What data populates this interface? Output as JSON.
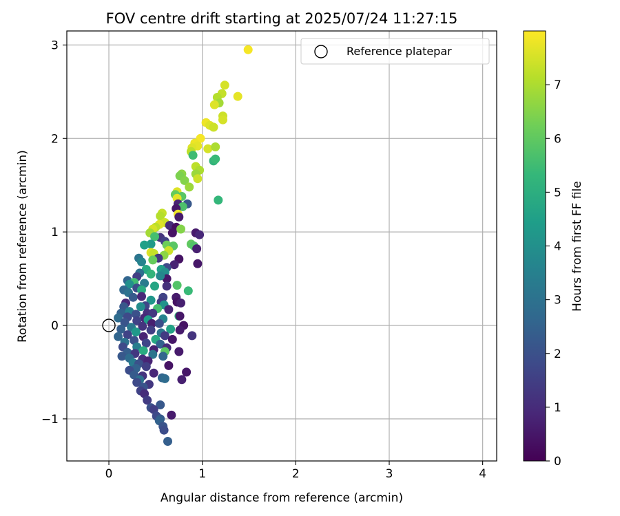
{
  "chart_data": {
    "type": "scatter",
    "title": "FOV centre drift starting at 2025/07/24 11:27:15",
    "xlabel": "Angular distance from reference (arcmin)",
    "ylabel": "Rotation from reference (arcmin)",
    "xlim": [
      -0.45,
      4.15
    ],
    "ylim": [
      -1.45,
      3.15
    ],
    "xticks": [
      0,
      1,
      2,
      3,
      4
    ],
    "xtick_labels": [
      "0",
      "1",
      "2",
      "3",
      "4"
    ],
    "yticks": [
      -1,
      0,
      1,
      2,
      3
    ],
    "ytick_labels": [
      "−1",
      "0",
      "1",
      "2",
      "3"
    ],
    "grid": true,
    "legend": {
      "placement": "top-right",
      "entries": [
        "Reference platepar"
      ]
    },
    "reference_point": {
      "x": 0,
      "y": 0
    },
    "colorbar": {
      "label": "Hours from first FF file",
      "range": [
        0,
        8
      ],
      "ticks": [
        0,
        1,
        2,
        3,
        4,
        5,
        6,
        7
      ],
      "tick_labels": [
        "0",
        "1",
        "2",
        "3",
        "4",
        "5",
        "6",
        "7"
      ],
      "colormap": [
        "#440154",
        "#482878",
        "#3e4989",
        "#31688e",
        "#26828e",
        "#1f9e89",
        "#35b779",
        "#6ece58",
        "#b5de2b",
        "#fde725"
      ]
    },
    "points": [
      {
        "x": 1.49,
        "y": 2.95,
        "t": 7.9
      },
      {
        "x": 1.38,
        "y": 2.45,
        "t": 7.7
      },
      {
        "x": 1.24,
        "y": 2.57,
        "t": 7.5
      },
      {
        "x": 1.21,
        "y": 2.48,
        "t": 7.3
      },
      {
        "x": 1.16,
        "y": 2.44,
        "t": 7.1
      },
      {
        "x": 1.18,
        "y": 2.38,
        "t": 6.9
      },
      {
        "x": 1.13,
        "y": 2.36,
        "t": 7.6
      },
      {
        "x": 1.22,
        "y": 2.24,
        "t": 7.4
      },
      {
        "x": 1.22,
        "y": 2.2,
        "t": 7.5
      },
      {
        "x": 1.04,
        "y": 2.17,
        "t": 7.8
      },
      {
        "x": 1.08,
        "y": 2.14,
        "t": 7.6
      },
      {
        "x": 1.12,
        "y": 2.12,
        "t": 7.4
      },
      {
        "x": 0.98,
        "y": 2.0,
        "t": 7.9
      },
      {
        "x": 0.92,
        "y": 1.95,
        "t": 7.8
      },
      {
        "x": 0.95,
        "y": 1.92,
        "t": 7.7
      },
      {
        "x": 0.89,
        "y": 1.9,
        "t": 7.6
      },
      {
        "x": 1.06,
        "y": 1.89,
        "t": 7.5
      },
      {
        "x": 1.14,
        "y": 1.91,
        "t": 7.0
      },
      {
        "x": 0.88,
        "y": 1.86,
        "t": 7.2
      },
      {
        "x": 0.9,
        "y": 1.82,
        "t": 5.5
      },
      {
        "x": 1.12,
        "y": 1.76,
        "t": 5.2
      },
      {
        "x": 1.14,
        "y": 1.78,
        "t": 5.4
      },
      {
        "x": 0.93,
        "y": 1.7,
        "t": 7.2
      },
      {
        "x": 0.97,
        "y": 1.66,
        "t": 7.0
      },
      {
        "x": 0.93,
        "y": 1.62,
        "t": 6.8
      },
      {
        "x": 0.78,
        "y": 1.62,
        "t": 6.6
      },
      {
        "x": 0.76,
        "y": 1.6,
        "t": 6.4
      },
      {
        "x": 0.95,
        "y": 1.57,
        "t": 7.4
      },
      {
        "x": 0.81,
        "y": 1.55,
        "t": 6.5
      },
      {
        "x": 0.86,
        "y": 1.48,
        "t": 6.8
      },
      {
        "x": 0.73,
        "y": 1.43,
        "t": 7.6
      },
      {
        "x": 0.71,
        "y": 1.4,
        "t": 6.1
      },
      {
        "x": 0.78,
        "y": 1.38,
        "t": 5.9
      },
      {
        "x": 0.73,
        "y": 1.36,
        "t": 7.7
      },
      {
        "x": 0.74,
        "y": 1.3,
        "t": 0.8
      },
      {
        "x": 0.84,
        "y": 1.3,
        "t": 2.2
      },
      {
        "x": 0.79,
        "y": 1.27,
        "t": 5.7
      },
      {
        "x": 0.72,
        "y": 1.25,
        "t": 0.5
      },
      {
        "x": 1.17,
        "y": 1.34,
        "t": 5.3
      },
      {
        "x": 0.57,
        "y": 1.2,
        "t": 7.3
      },
      {
        "x": 0.55,
        "y": 1.17,
        "t": 7.1
      },
      {
        "x": 0.74,
        "y": 1.19,
        "t": 7.8
      },
      {
        "x": 0.75,
        "y": 1.16,
        "t": 0.6
      },
      {
        "x": 0.6,
        "y": 1.1,
        "t": 7.4
      },
      {
        "x": 0.54,
        "y": 1.08,
        "t": 7.6
      },
      {
        "x": 0.5,
        "y": 1.05,
        "t": 7.2
      },
      {
        "x": 0.47,
        "y": 1.03,
        "t": 7.5
      },
      {
        "x": 0.65,
        "y": 1.07,
        "t": 1.0
      },
      {
        "x": 0.72,
        "y": 1.05,
        "t": 0.3
      },
      {
        "x": 0.77,
        "y": 1.03,
        "t": 6.5
      },
      {
        "x": 0.68,
        "y": 0.99,
        "t": 0.4
      },
      {
        "x": 0.93,
        "y": 0.99,
        "t": 0.6
      },
      {
        "x": 0.97,
        "y": 0.97,
        "t": 0.9
      },
      {
        "x": 0.44,
        "y": 0.99,
        "t": 6.9
      },
      {
        "x": 0.55,
        "y": 0.94,
        "t": 1.2
      },
      {
        "x": 0.49,
        "y": 0.95,
        "t": 5.6
      },
      {
        "x": 0.6,
        "y": 0.9,
        "t": 1.5
      },
      {
        "x": 0.88,
        "y": 0.87,
        "t": 6.0
      },
      {
        "x": 0.91,
        "y": 0.85,
        "t": 5.8
      },
      {
        "x": 0.94,
        "y": 0.82,
        "t": 0.7
      },
      {
        "x": 0.45,
        "y": 0.87,
        "t": 4.3
      },
      {
        "x": 0.38,
        "y": 0.86,
        "t": 4.5
      },
      {
        "x": 0.62,
        "y": 0.86,
        "t": 6.2
      },
      {
        "x": 0.69,
        "y": 0.85,
        "t": 5.9
      },
      {
        "x": 0.64,
        "y": 0.8,
        "t": 7.4
      },
      {
        "x": 0.45,
        "y": 0.78,
        "t": 7.6
      },
      {
        "x": 0.48,
        "y": 0.77,
        "t": 7.3
      },
      {
        "x": 0.59,
        "y": 0.75,
        "t": 6.6
      },
      {
        "x": 0.53,
        "y": 0.72,
        "t": 1.3
      },
      {
        "x": 0.47,
        "y": 0.7,
        "t": 6.1
      },
      {
        "x": 0.32,
        "y": 0.72,
        "t": 3.1
      },
      {
        "x": 0.35,
        "y": 0.68,
        "t": 3.6
      },
      {
        "x": 0.75,
        "y": 0.71,
        "t": 0.4
      },
      {
        "x": 0.7,
        "y": 0.65,
        "t": 0.8
      },
      {
        "x": 0.95,
        "y": 0.66,
        "t": 0.5
      },
      {
        "x": 0.62,
        "y": 0.62,
        "t": 1.8
      },
      {
        "x": 0.56,
        "y": 0.6,
        "t": 4.5
      },
      {
        "x": 0.4,
        "y": 0.6,
        "t": 4.8
      },
      {
        "x": 0.33,
        "y": 0.56,
        "t": 2.9
      },
      {
        "x": 0.45,
        "y": 0.55,
        "t": 5.2
      },
      {
        "x": 0.6,
        "y": 0.57,
        "t": 4.0
      },
      {
        "x": 0.62,
        "y": 0.5,
        "t": 0.5
      },
      {
        "x": 0.55,
        "y": 0.53,
        "t": 3.7
      },
      {
        "x": 0.3,
        "y": 0.52,
        "t": 1.5
      },
      {
        "x": 0.2,
        "y": 0.48,
        "t": 2.6
      },
      {
        "x": 0.27,
        "y": 0.46,
        "t": 5.5
      },
      {
        "x": 0.22,
        "y": 0.44,
        "t": 4.0
      },
      {
        "x": 0.38,
        "y": 0.45,
        "t": 3.3
      },
      {
        "x": 0.73,
        "y": 0.43,
        "t": 5.8
      },
      {
        "x": 0.49,
        "y": 0.42,
        "t": 4.7
      },
      {
        "x": 0.62,
        "y": 0.42,
        "t": 1.1
      },
      {
        "x": 0.3,
        "y": 0.4,
        "t": 1.9
      },
      {
        "x": 0.35,
        "y": 0.38,
        "t": 4.9
      },
      {
        "x": 0.16,
        "y": 0.38,
        "t": 2.7
      },
      {
        "x": 0.21,
        "y": 0.35,
        "t": 3.0
      },
      {
        "x": 0.85,
        "y": 0.37,
        "t": 5.4
      },
      {
        "x": 0.26,
        "y": 0.3,
        "t": 2.3
      },
      {
        "x": 0.35,
        "y": 0.31,
        "t": 0.9
      },
      {
        "x": 0.58,
        "y": 0.3,
        "t": 1.6
      },
      {
        "x": 0.72,
        "y": 0.3,
        "t": 0.6
      },
      {
        "x": 0.45,
        "y": 0.27,
        "t": 4.2
      },
      {
        "x": 0.18,
        "y": 0.24,
        "t": 0.9
      },
      {
        "x": 0.56,
        "y": 0.25,
        "t": 1.4
      },
      {
        "x": 0.73,
        "y": 0.25,
        "t": 0.4
      },
      {
        "x": 0.77,
        "y": 0.24,
        "t": 0.7
      },
      {
        "x": 0.59,
        "y": 0.22,
        "t": 4.1
      },
      {
        "x": 0.39,
        "y": 0.21,
        "t": 1.7
      },
      {
        "x": 0.16,
        "y": 0.2,
        "t": 2.2
      },
      {
        "x": 0.34,
        "y": 0.2,
        "t": 3.9
      },
      {
        "x": 0.52,
        "y": 0.18,
        "t": 5.6
      },
      {
        "x": 0.64,
        "y": 0.17,
        "t": 0.8
      },
      {
        "x": 0.22,
        "y": 0.15,
        "t": 3.5
      },
      {
        "x": 0.13,
        "y": 0.13,
        "t": 2.5
      },
      {
        "x": 0.41,
        "y": 0.13,
        "t": 1.1
      },
      {
        "x": 0.47,
        "y": 0.13,
        "t": 1.3
      },
      {
        "x": 0.29,
        "y": 0.12,
        "t": 2.0
      },
      {
        "x": 0.75,
        "y": 0.1,
        "t": 5.2
      },
      {
        "x": 0.76,
        "y": 0.1,
        "t": 0.5
      },
      {
        "x": 0.2,
        "y": 0.09,
        "t": 1.8
      },
      {
        "x": 0.1,
        "y": 0.08,
        "t": 2.8
      },
      {
        "x": 0.38,
        "y": 0.08,
        "t": 0.9
      },
      {
        "x": 0.58,
        "y": 0.07,
        "t": 3.6
      },
      {
        "x": 0.42,
        "y": 0.06,
        "t": 4.4
      },
      {
        "x": 0.3,
        "y": 0.05,
        "t": 1.6
      },
      {
        "x": 0.17,
        "y": 0.03,
        "t": 2.1
      },
      {
        "x": 0.46,
        "y": 0.02,
        "t": 0.7
      },
      {
        "x": 0.54,
        "y": 0.02,
        "t": 1.9
      },
      {
        "x": 0.8,
        "y": 0.0,
        "t": 0.4
      },
      {
        "x": 0.24,
        "y": -0.02,
        "t": 3.2
      },
      {
        "x": 0.36,
        "y": -0.01,
        "t": 1.2
      },
      {
        "x": 0.13,
        "y": -0.04,
        "t": 2.4
      },
      {
        "x": 0.66,
        "y": -0.04,
        "t": 4.6
      },
      {
        "x": 0.45,
        "y": -0.05,
        "t": 1.5
      },
      {
        "x": 0.76,
        "y": -0.05,
        "t": 0.6
      },
      {
        "x": 0.29,
        "y": -0.07,
        "t": 4.3
      },
      {
        "x": 0.56,
        "y": -0.08,
        "t": 3.1
      },
      {
        "x": 0.2,
        "y": -0.1,
        "t": 1.6
      },
      {
        "x": 0.1,
        "y": -0.12,
        "t": 2.6
      },
      {
        "x": 0.37,
        "y": -0.12,
        "t": 0.8
      },
      {
        "x": 0.6,
        "y": -0.11,
        "t": 1.4
      },
      {
        "x": 0.89,
        "y": -0.11,
        "t": 1.2
      },
      {
        "x": 0.5,
        "y": -0.15,
        "t": 4.8
      },
      {
        "x": 0.27,
        "y": -0.16,
        "t": 2.0
      },
      {
        "x": 0.17,
        "y": -0.18,
        "t": 3.0
      },
      {
        "x": 0.68,
        "y": -0.15,
        "t": 0.5
      },
      {
        "x": 0.4,
        "y": -0.19,
        "t": 1.7
      },
      {
        "x": 0.55,
        "y": -0.2,
        "t": 2.5
      },
      {
        "x": 0.15,
        "y": -0.23,
        "t": 1.8
      },
      {
        "x": 0.3,
        "y": -0.23,
        "t": 3.4
      },
      {
        "x": 0.62,
        "y": -0.24,
        "t": 1.0
      },
      {
        "x": 0.48,
        "y": -0.26,
        "t": 0.7
      },
      {
        "x": 0.37,
        "y": -0.27,
        "t": 4.9
      },
      {
        "x": 0.2,
        "y": -0.29,
        "t": 2.4
      },
      {
        "x": 0.75,
        "y": -0.28,
        "t": 0.6
      },
      {
        "x": 0.6,
        "y": -0.28,
        "t": 5.9
      },
      {
        "x": 0.28,
        "y": -0.3,
        "t": 1.3
      },
      {
        "x": 0.47,
        "y": -0.31,
        "t": 3.1
      },
      {
        "x": 0.14,
        "y": -0.33,
        "t": 2.2
      },
      {
        "x": 0.58,
        "y": -0.33,
        "t": 2.6
      },
      {
        "x": 0.22,
        "y": -0.35,
        "t": 2.8
      },
      {
        "x": 0.36,
        "y": -0.36,
        "t": 1.1
      },
      {
        "x": 0.42,
        "y": -0.38,
        "t": 0.8
      },
      {
        "x": 0.26,
        "y": -0.4,
        "t": 3.3
      },
      {
        "x": 0.32,
        "y": -0.41,
        "t": 2.0
      },
      {
        "x": 0.64,
        "y": -0.43,
        "t": 0.4
      },
      {
        "x": 0.4,
        "y": -0.44,
        "t": 1.5
      },
      {
        "x": 0.29,
        "y": -0.46,
        "t": 2.5
      },
      {
        "x": 0.22,
        "y": -0.48,
        "t": 1.9
      },
      {
        "x": 0.83,
        "y": -0.5,
        "t": 0.5
      },
      {
        "x": 0.48,
        "y": -0.51,
        "t": 0.9
      },
      {
        "x": 0.27,
        "y": -0.53,
        "t": 2.3
      },
      {
        "x": 0.36,
        "y": -0.54,
        "t": 1.2
      },
      {
        "x": 0.57,
        "y": -0.56,
        "t": 2.6
      },
      {
        "x": 0.6,
        "y": -0.57,
        "t": 2.8
      },
      {
        "x": 0.78,
        "y": -0.58,
        "t": 0.7
      },
      {
        "x": 0.33,
        "y": -0.58,
        "t": 3.0
      },
      {
        "x": 0.3,
        "y": -0.61,
        "t": 1.8
      },
      {
        "x": 0.43,
        "y": -0.63,
        "t": 1.3
      },
      {
        "x": 0.37,
        "y": -0.66,
        "t": 2.1
      },
      {
        "x": 0.34,
        "y": -0.7,
        "t": 1.6
      },
      {
        "x": 0.38,
        "y": -0.73,
        "t": 1.0
      },
      {
        "x": 0.41,
        "y": -0.8,
        "t": 1.4
      },
      {
        "x": 0.55,
        "y": -0.85,
        "t": 2.2
      },
      {
        "x": 0.45,
        "y": -0.88,
        "t": 2.0
      },
      {
        "x": 0.48,
        "y": -0.9,
        "t": 1.5
      },
      {
        "x": 0.51,
        "y": -0.97,
        "t": 1.8
      },
      {
        "x": 0.55,
        "y": -1.0,
        "t": 2.3
      },
      {
        "x": 0.54,
        "y": -1.02,
        "t": 2.5
      },
      {
        "x": 0.58,
        "y": -1.08,
        "t": 2.1
      },
      {
        "x": 0.59,
        "y": -1.12,
        "t": 1.9
      },
      {
        "x": 0.63,
        "y": -1.24,
        "t": 2.4
      },
      {
        "x": 0.67,
        "y": -0.96,
        "t": 0.6
      }
    ]
  }
}
